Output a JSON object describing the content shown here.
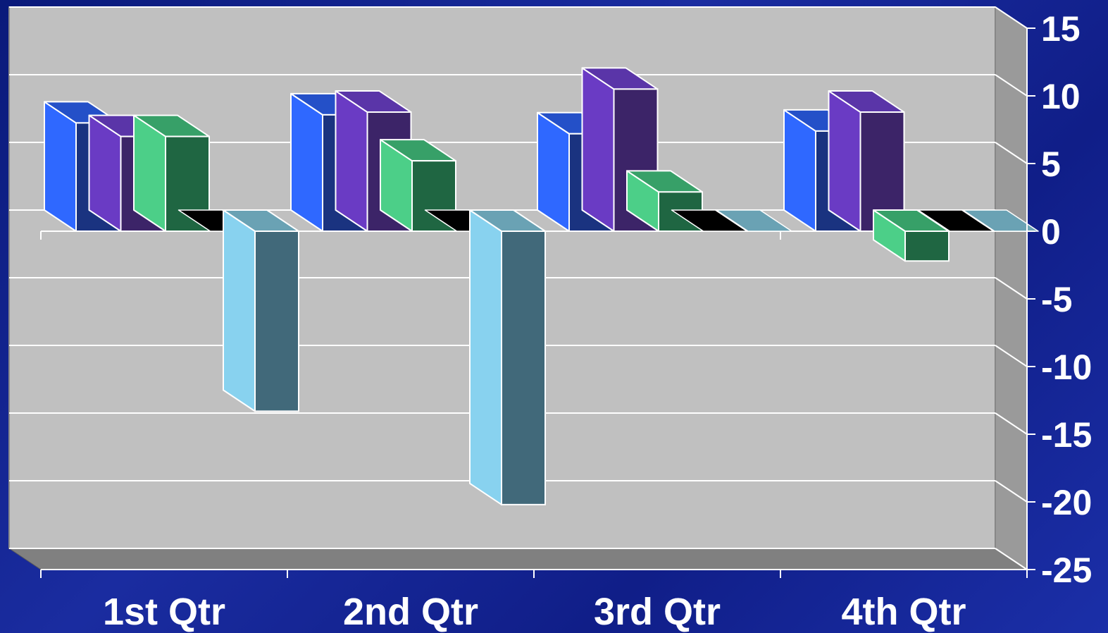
{
  "chart_data": {
    "type": "bar",
    "variant": "3d-clustered-column",
    "categories": [
      "1st Qtr",
      "2nd Qtr",
      "3rd Qtr",
      "4th Qtr"
    ],
    "series": [
      {
        "values": [
          8,
          8.6,
          7.2,
          7.4
        ],
        "front": "#1a3380",
        "side": "#2f68ff",
        "top": "#2450c8"
      },
      {
        "values": [
          7,
          8.8,
          10.5,
          8.8
        ],
        "front": "#3c2468",
        "side": "#6a3bc4",
        "top": "#5a35a8"
      },
      {
        "values": [
          7,
          5.2,
          2.9,
          -2.2
        ],
        "front": "#1f6642",
        "side": "#4ccf88",
        "top": "#37a068"
      },
      {
        "values": [
          0,
          0,
          0,
          0
        ],
        "front": "#000000",
        "side": "#000000",
        "top": "#000000"
      },
      {
        "values": [
          -13.3,
          -20.2,
          0,
          0
        ],
        "front": "#41697a",
        "side": "#88d2ef",
        "top": "#6aa2b4"
      }
    ],
    "y_ticks": [
      "15",
      "10",
      "5",
      "0",
      "-5",
      "-10",
      "-15",
      "-20",
      "-25"
    ],
    "ylim": [
      -25,
      15
    ],
    "grid": true,
    "colors": {
      "wall": "#c0c0c0",
      "floor": "#808080",
      "gridline": "#ffffff",
      "text": "#ffffff"
    }
  }
}
